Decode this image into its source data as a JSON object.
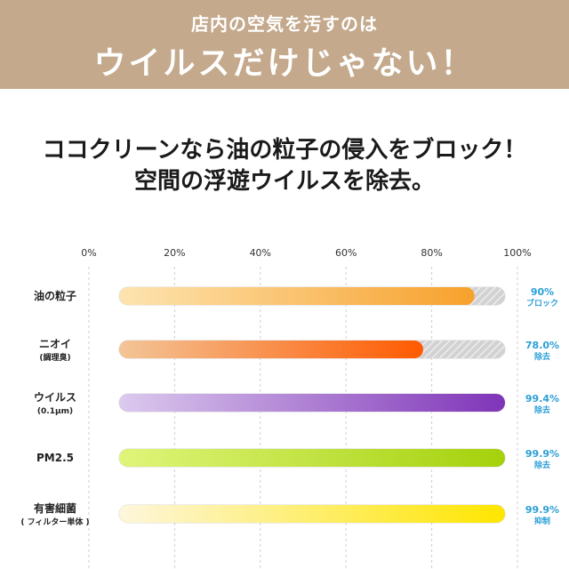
{
  "banner": {
    "subtitle": "店内の空気を汚すのは",
    "title": "ウイルスだけじゃない！"
  },
  "headline": {
    "line1": "ココクリーンなら油の粒子の侵入をブロック！",
    "line2": "空間の浮遊ウイルスを除去。"
  },
  "colors": {
    "banner": "#c4a98c",
    "value_text": "#2a9fd6",
    "track": "#f0f0f0"
  },
  "chart_data": {
    "type": "bar",
    "orientation": "horizontal",
    "xlim": [
      0,
      100
    ],
    "ticks": [
      "0%",
      "20%",
      "40%",
      "60%",
      "80%",
      "100%"
    ],
    "tick_values": [
      0,
      20,
      40,
      60,
      80,
      100
    ],
    "grid": true,
    "categories": [
      {
        "label": "油の粒子",
        "sub": "",
        "value": 90,
        "value_label": "90%",
        "note": "ブロック",
        "color_start": "#fde4b0",
        "color_end": "#f7a12c",
        "hatched_remainder": true
      },
      {
        "label": "ニオイ",
        "sub": "(調理臭)",
        "value": 78.0,
        "value_label": "78.0%",
        "note": "除去",
        "color_start": "#f3c598",
        "color_end": "#ff5a00",
        "hatched_remainder": true
      },
      {
        "label": "ウイルス",
        "sub": "(0.1μm)",
        "value": 99.4,
        "value_label": "99.4%",
        "note": "除去",
        "color_start": "#dccaee",
        "color_end": "#7f34b8",
        "hatched_remainder": false
      },
      {
        "label": "PM2.5",
        "sub": "",
        "value": 99.9,
        "value_label": "99.9%",
        "note": "除去",
        "color_start": "#dff57a",
        "color_end": "#a4d10b",
        "hatched_remainder": false
      },
      {
        "label": "有害細菌",
        "sub": "( フィルター単体 )",
        "value": 99.9,
        "value_label": "99.9%",
        "note": "抑制",
        "color_start": "#fdf6dc",
        "color_end": "#ffe600",
        "hatched_remainder": false
      }
    ]
  }
}
